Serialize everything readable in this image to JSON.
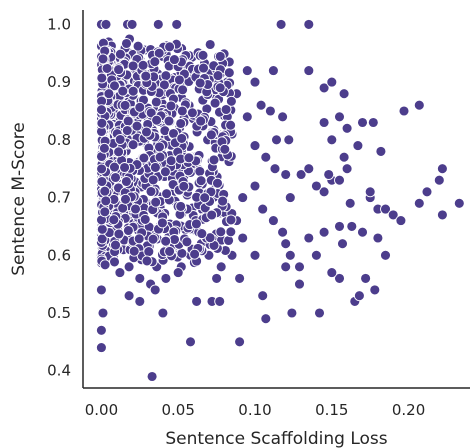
{
  "chart_data": {
    "type": "scatter",
    "title": "",
    "xlabel": "Sentence Scaffolding Loss",
    "ylabel": "Sentence M-Score",
    "xlim": [
      -0.012,
      0.24
    ],
    "ylim": [
      0.37,
      1.025
    ],
    "xticks": [
      {
        "value": 0.0,
        "label": "0.00"
      },
      {
        "value": 0.05,
        "label": "0.05"
      },
      {
        "value": 0.1,
        "label": "0.10"
      },
      {
        "value": 0.15,
        "label": "0.15"
      },
      {
        "value": 0.2,
        "label": "0.20"
      }
    ],
    "yticks": [
      {
        "value": 0.4,
        "label": "0.4"
      },
      {
        "value": 0.5,
        "label": "0.5"
      },
      {
        "value": 0.6,
        "label": "0.6"
      },
      {
        "value": 0.7,
        "label": "0.7"
      },
      {
        "value": 0.8,
        "label": "0.8"
      },
      {
        "value": 0.9,
        "label": "0.9"
      },
      {
        "value": 1.0,
        "label": "1.0"
      }
    ],
    "grid": false,
    "colors": {
      "point": "#4c3d8c",
      "point_edge": "#ffffff",
      "axis": "#262626"
    },
    "series": [
      {
        "values_note": "",
        "points": [
          [
            0.0,
            1.0
          ],
          [
            0.003,
            1.0
          ],
          [
            0.017,
            1.0
          ],
          [
            0.02,
            1.0
          ],
          [
            0.037,
            1.0
          ],
          [
            0.049,
            1.0
          ],
          [
            0.117,
            1.0
          ],
          [
            0.135,
            1.0
          ],
          [
            0.0,
            0.44
          ],
          [
            0.0,
            0.47
          ],
          [
            0.001,
            0.5
          ],
          [
            0.0,
            0.54
          ],
          [
            0.033,
            0.39
          ],
          [
            0.058,
            0.45
          ],
          [
            0.09,
            0.45
          ],
          [
            0.04,
            0.5
          ],
          [
            0.062,
            0.52
          ],
          [
            0.072,
            0.52
          ],
          [
            0.077,
            0.52
          ],
          [
            0.107,
            0.49
          ],
          [
            0.124,
            0.5
          ],
          [
            0.142,
            0.5
          ],
          [
            0.105,
            0.53
          ],
          [
            0.129,
            0.55
          ],
          [
            0.165,
            0.52
          ],
          [
            0.168,
            0.53
          ],
          [
            0.178,
            0.54
          ],
          [
            0.155,
            0.56
          ],
          [
            0.172,
            0.56
          ],
          [
            0.075,
            0.56
          ],
          [
            0.09,
            0.56
          ],
          [
            0.12,
            0.58
          ],
          [
            0.129,
            0.58
          ],
          [
            0.14,
            0.6
          ],
          [
            0.15,
            0.57
          ],
          [
            0.185,
            0.6
          ],
          [
            0.157,
            0.62
          ],
          [
            0.18,
            0.63
          ],
          [
            0.163,
            0.65
          ],
          [
            0.17,
            0.64
          ],
          [
            0.12,
            0.62
          ],
          [
            0.135,
            0.63
          ],
          [
            0.145,
            0.64
          ],
          [
            0.155,
            0.65
          ],
          [
            0.175,
            0.7
          ],
          [
            0.175,
            0.71
          ],
          [
            0.18,
            0.68
          ],
          [
            0.185,
            0.68
          ],
          [
            0.19,
            0.67
          ],
          [
            0.195,
            0.66
          ],
          [
            0.162,
            0.69
          ],
          [
            0.15,
            0.73
          ],
          [
            0.145,
            0.71
          ],
          [
            0.14,
            0.72
          ],
          [
            0.13,
            0.74
          ],
          [
            0.135,
            0.75
          ],
          [
            0.148,
            0.74
          ],
          [
            0.155,
            0.73
          ],
          [
            0.16,
            0.75
          ],
          [
            0.158,
            0.77
          ],
          [
            0.167,
            0.79
          ],
          [
            0.182,
            0.78
          ],
          [
            0.197,
            0.85
          ],
          [
            0.207,
            0.86
          ],
          [
            0.15,
            0.8
          ],
          [
            0.16,
            0.82
          ],
          [
            0.155,
            0.84
          ],
          [
            0.145,
            0.83
          ],
          [
            0.158,
            0.88
          ],
          [
            0.145,
            0.89
          ],
          [
            0.15,
            0.9
          ],
          [
            0.135,
            0.92
          ],
          [
            0.17,
            0.83
          ],
          [
            0.177,
            0.83
          ],
          [
            0.233,
            0.69
          ],
          [
            0.222,
            0.67
          ],
          [
            0.22,
            0.73
          ],
          [
            0.222,
            0.75
          ],
          [
            0.212,
            0.71
          ],
          [
            0.207,
            0.69
          ],
          [
            0.112,
            0.92
          ],
          [
            0.095,
            0.92
          ],
          [
            0.1,
            0.9
          ],
          [
            0.104,
            0.86
          ],
          [
            0.11,
            0.85
          ],
          [
            0.118,
            0.84
          ],
          [
            0.122,
            0.8
          ],
          [
            0.114,
            0.8
          ],
          [
            0.095,
            0.84
          ],
          [
            0.088,
            0.88
          ],
          [
            0.082,
            0.9
          ],
          [
            0.075,
            0.92
          ],
          [
            0.068,
            0.93
          ],
          [
            0.085,
            0.81
          ],
          [
            0.1,
            0.79
          ],
          [
            0.107,
            0.77
          ],
          [
            0.113,
            0.75
          ],
          [
            0.12,
            0.74
          ],
          [
            0.123,
            0.7
          ],
          [
            0.1,
            0.72
          ],
          [
            0.092,
            0.7
          ],
          [
            0.105,
            0.68
          ],
          [
            0.112,
            0.66
          ],
          [
            0.118,
            0.64
          ],
          [
            0.123,
            0.6
          ],
          [
            0.1,
            0.6
          ],
          [
            0.092,
            0.63
          ],
          [
            0.088,
            0.66
          ],
          [
            0.085,
            0.6
          ],
          [
            0.078,
            0.58
          ],
          [
            0.07,
            0.6
          ],
          [
            0.065,
            0.62
          ],
          [
            0.058,
            0.6
          ],
          [
            0.052,
            0.58
          ],
          [
            0.047,
            0.61
          ],
          [
            0.042,
            0.56
          ],
          [
            0.036,
            0.58
          ],
          [
            0.032,
            0.55
          ],
          [
            0.025,
            0.56
          ],
          [
            0.018,
            0.58
          ],
          [
            0.012,
            0.57
          ],
          [
            0.008,
            0.6
          ],
          [
            0.005,
            0.62
          ],
          [
            0.018,
            0.53
          ],
          [
            0.025,
            0.52
          ],
          [
            0.035,
            0.54
          ],
          [
            0.05,
            0.57
          ]
        ]
      }
    ]
  }
}
